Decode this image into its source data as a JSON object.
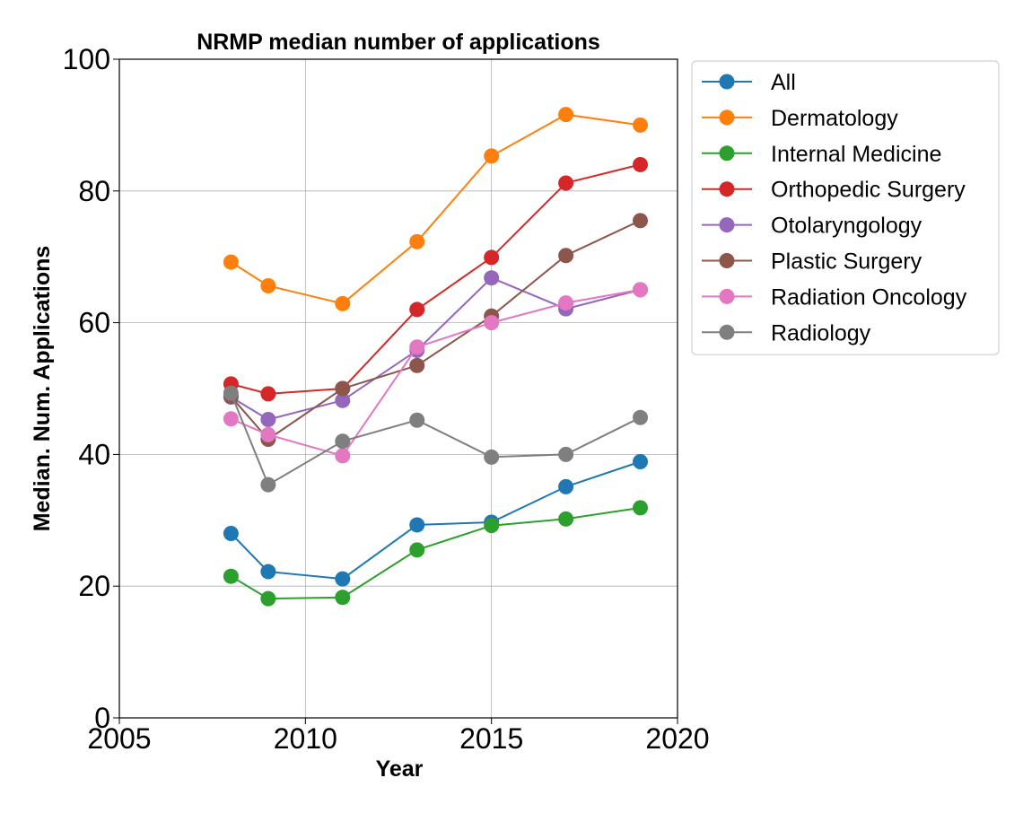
{
  "chart_data": {
    "type": "line",
    "title": "NRMP median number of applications",
    "xlabel": "Year",
    "ylabel": "Median. Num. Applications",
    "xlim": [
      2005,
      2020
    ],
    "ylim": [
      0,
      100
    ],
    "xticks": [
      2005,
      2010,
      2015,
      2020
    ],
    "yticks": [
      0,
      20,
      40,
      60,
      80,
      100
    ],
    "grid": true,
    "legend_position": "outside-top-right",
    "x": [
      2008,
      2009,
      2011,
      2013,
      2015,
      2017,
      2019
    ],
    "series": [
      {
        "name": "All",
        "color": "#1f77b4",
        "values": [
          28.0,
          22.2,
          21.1,
          29.3,
          29.7,
          35.1,
          38.9
        ]
      },
      {
        "name": "Dermatology",
        "color": "#ff7f0e",
        "values": [
          69.2,
          65.6,
          62.9,
          72.3,
          85.3,
          91.6,
          90.0
        ]
      },
      {
        "name": "Internal Medicine",
        "color": "#2ca02c",
        "values": [
          21.5,
          18.1,
          18.3,
          25.5,
          29.2,
          30.2,
          31.9
        ]
      },
      {
        "name": "Orthopedic Surgery",
        "color": "#d62728",
        "values": [
          50.7,
          49.2,
          50.0,
          62.0,
          69.9,
          81.2,
          84.0
        ]
      },
      {
        "name": "Otolaryngology",
        "color": "#9467bd",
        "values": [
          48.7,
          45.3,
          48.2,
          55.8,
          66.8,
          62.1,
          65.0
        ]
      },
      {
        "name": "Plastic Surgery",
        "color": "#8c564b",
        "values": [
          48.8,
          42.3,
          50.0,
          53.5,
          61.0,
          70.2,
          75.5
        ]
      },
      {
        "name": "Radiation Oncology",
        "color": "#e377c2",
        "values": [
          45.4,
          43.0,
          39.8,
          56.3,
          60.0,
          63.0,
          65.0
        ]
      },
      {
        "name": "Radiology",
        "color": "#7f7f7f",
        "values": [
          49.3,
          35.4,
          42.0,
          45.2,
          39.6,
          40.0,
          45.6
        ]
      }
    ]
  }
}
